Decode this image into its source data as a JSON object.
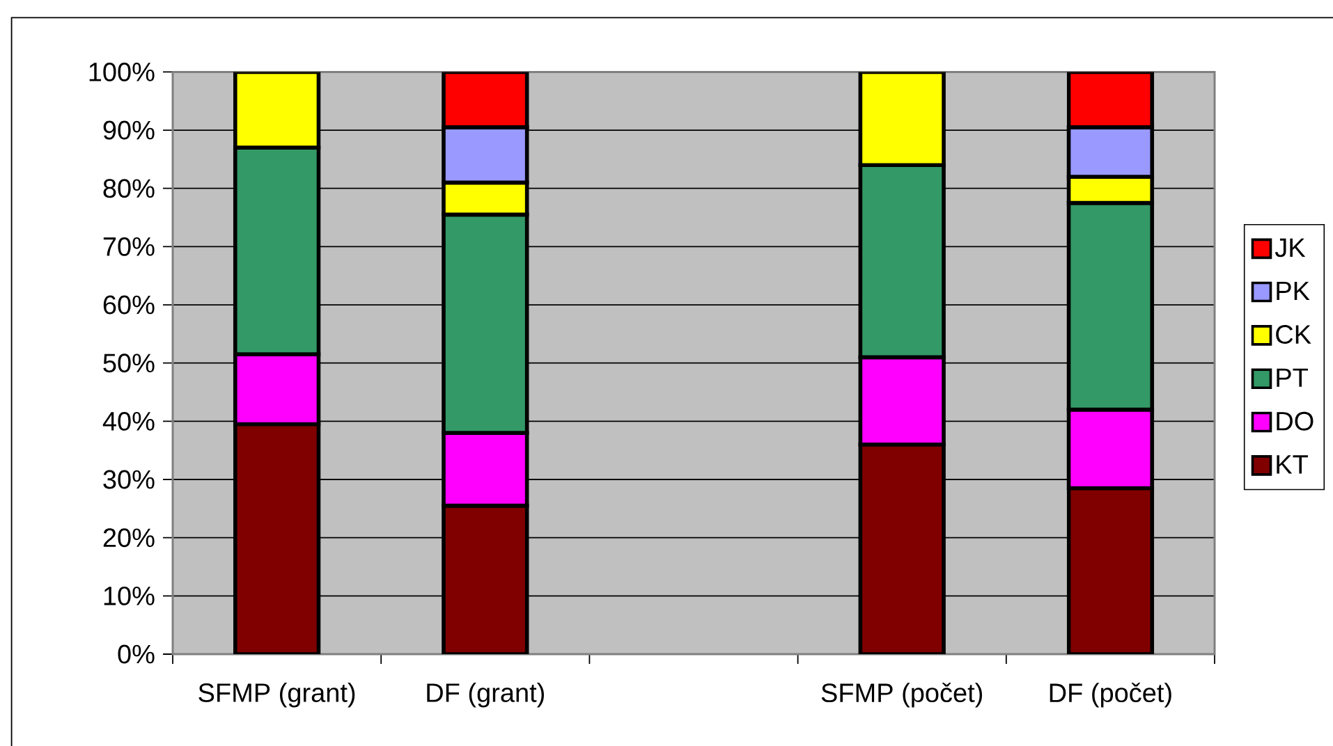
{
  "chart_data": {
    "type": "bar",
    "stacked": true,
    "categories": [
      "SFMP (grant)",
      "DF    (grant)",
      null,
      "SFMP (počet)",
      "DF     (počet)"
    ],
    "series": [
      {
        "name": "KT",
        "color": "#800000",
        "values": [
          39.5,
          25.5,
          null,
          36,
          28.5
        ]
      },
      {
        "name": "DO",
        "color": "#ff00ff",
        "values": [
          12,
          12.5,
          null,
          15,
          13.5
        ]
      },
      {
        "name": "PT",
        "color": "#339966",
        "values": [
          35.5,
          37.5,
          null,
          33,
          35.5
        ]
      },
      {
        "name": "CK",
        "color": "#ffff00",
        "values": [
          13,
          5.5,
          null,
          16,
          4.5
        ]
      },
      {
        "name": "PK",
        "color": "#9999ff",
        "values": [
          null,
          9.5,
          null,
          null,
          8.5
        ]
      },
      {
        "name": "JK",
        "color": "#ff0000",
        "values": [
          null,
          9.5,
          null,
          null,
          9.5
        ]
      }
    ],
    "ylim": [
      0,
      100
    ],
    "yticks": [
      {
        "value": 0,
        "label": "0%"
      },
      {
        "value": 10,
        "label": "10%"
      },
      {
        "value": 20,
        "label": "20%"
      },
      {
        "value": 30,
        "label": "30%"
      },
      {
        "value": 40,
        "label": "40%"
      },
      {
        "value": 50,
        "label": "50%"
      },
      {
        "value": 60,
        "label": "60%"
      },
      {
        "value": 70,
        "label": "70%"
      },
      {
        "value": 80,
        "label": "80%"
      },
      {
        "value": 90,
        "label": "90%"
      },
      {
        "value": 100,
        "label": "100%"
      }
    ],
    "grid": "y",
    "legend": "right"
  }
}
